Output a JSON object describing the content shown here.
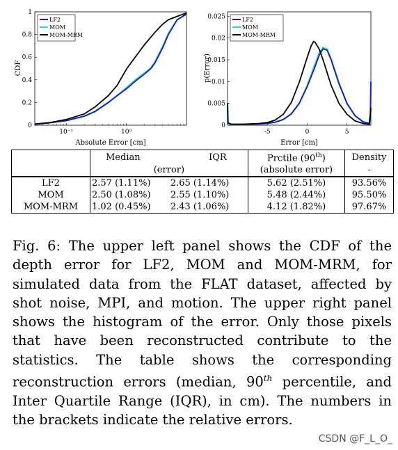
{
  "chart_data": [
    {
      "type": "line",
      "title": "",
      "xlabel": "Absolute Error [cm]",
      "ylabel": "CDF",
      "xscale": "log",
      "xlim": [
        0.03,
        10
      ],
      "ylim": [
        0,
        1
      ],
      "xticks": [
        "10⁻¹",
        "10⁰"
      ],
      "yticks": [
        "0",
        "0.2",
        "0.4",
        "0.6",
        "0.8",
        "1"
      ],
      "legend": "top-left",
      "series": [
        {
          "name": "LF2",
          "color": "#1c1cb4",
          "x": [
            0.03,
            0.05,
            0.1,
            0.2,
            0.3,
            0.5,
            0.7,
            1,
            1.5,
            2,
            2.57,
            3,
            4,
            5,
            7,
            10
          ],
          "y": [
            0.01,
            0.02,
            0.04,
            0.08,
            0.12,
            0.2,
            0.26,
            0.32,
            0.4,
            0.45,
            0.5,
            0.55,
            0.68,
            0.8,
            0.93,
            0.98
          ]
        },
        {
          "name": "MOM",
          "color": "#35d0e8",
          "x": [
            0.03,
            0.05,
            0.1,
            0.2,
            0.3,
            0.5,
            0.7,
            1,
            1.5,
            2,
            2.5,
            3,
            4,
            5,
            7,
            10
          ],
          "y": [
            0.01,
            0.02,
            0.04,
            0.08,
            0.12,
            0.2,
            0.26,
            0.33,
            0.41,
            0.46,
            0.5,
            0.56,
            0.69,
            0.81,
            0.93,
            0.98
          ]
        },
        {
          "name": "MOM-MRM",
          "color": "#000000",
          "x": [
            0.03,
            0.05,
            0.1,
            0.2,
            0.3,
            0.5,
            0.7,
            1.02,
            1.5,
            2,
            3,
            4,
            5,
            7,
            10
          ],
          "y": [
            0.01,
            0.02,
            0.05,
            0.1,
            0.16,
            0.26,
            0.35,
            0.5,
            0.62,
            0.71,
            0.82,
            0.89,
            0.93,
            0.96,
            0.99
          ]
        }
      ]
    },
    {
      "type": "line",
      "title": "",
      "xlabel": "Error [cm]",
      "ylabel": "p(Error)",
      "xlim": [
        -10,
        8
      ],
      "ylim": [
        0,
        0.026
      ],
      "xticks": [
        "-5",
        "0",
        "5"
      ],
      "yticks": [
        "0",
        "0.005",
        "0.01",
        "0.015",
        "0.02",
        "0.025"
      ],
      "legend": "top-left",
      "series": [
        {
          "name": "LF2",
          "color": "#1c1cb4",
          "x": [
            -10,
            -9.95,
            -9.5,
            -8,
            -6,
            -5,
            -4,
            -3,
            -2,
            -1,
            0,
            1,
            1.5,
            2,
            2.5,
            3,
            4,
            5,
            6,
            7,
            7.8,
            7.95,
            8
          ],
          "y": [
            0.005,
            0.0005,
            0.0002,
            0.0002,
            0.0003,
            0.0004,
            0.0007,
            0.0013,
            0.0026,
            0.005,
            0.0088,
            0.0135,
            0.016,
            0.0175,
            0.0172,
            0.015,
            0.0095,
            0.005,
            0.0022,
            0.0008,
            0.0004,
            0.003,
            0.01
          ]
        },
        {
          "name": "MOM",
          "color": "#35d0e8",
          "x": [
            -10,
            -9.95,
            -9.5,
            -8,
            -6,
            -5,
            -4,
            -3,
            -2,
            -1,
            0,
            1,
            1.5,
            2,
            2.5,
            3,
            4,
            5,
            6,
            7,
            7.8,
            7.95,
            8
          ],
          "y": [
            0.005,
            0.0005,
            0.0002,
            0.0002,
            0.0003,
            0.0004,
            0.0007,
            0.0013,
            0.0026,
            0.005,
            0.009,
            0.014,
            0.0165,
            0.0178,
            0.0174,
            0.0152,
            0.0096,
            0.005,
            0.0022,
            0.0008,
            0.0004,
            0.003,
            0.0105
          ]
        },
        {
          "name": "MOM-MRM",
          "color": "#000000",
          "x": [
            -10,
            -9.95,
            -9.5,
            -8,
            -6,
            -5,
            -4,
            -3,
            -2,
            -1,
            0,
            0.5,
            0.8,
            1,
            1.5,
            2,
            3,
            4,
            5,
            6,
            7,
            7.8,
            7.95,
            8
          ],
          "y": [
            0.005,
            0.0005,
            0.0002,
            0.0002,
            0.0004,
            0.0006,
            0.0012,
            0.0025,
            0.0052,
            0.0098,
            0.0155,
            0.0182,
            0.0192,
            0.019,
            0.0175,
            0.015,
            0.0092,
            0.005,
            0.0025,
            0.001,
            0.0004,
            0.0002,
            0.002,
            0.004
          ]
        }
      ]
    },
    {
      "type": "table",
      "header_row1": [
        "",
        "Median",
        "IQR",
        "Prctile (90",
        "th",
        ")",
        "Density"
      ],
      "header_row2": [
        "",
        "(error)",
        "(absolute error)",
        "-"
      ],
      "rows": [
        {
          "method": "LF2",
          "median": "2.57 (1.11%)",
          "iqr": "2.65 (1.14%)",
          "prctile": "5.62 (2.51%)",
          "density": "93.56%"
        },
        {
          "method": "MOM",
          "median": "2.50 (1.08%)",
          "iqr": "2.55 (1.10%)",
          "prctile": "5.48 (2.44%)",
          "density": "95.50%"
        },
        {
          "method": "MOM-MRM",
          "median": "1.02 (0.45%)",
          "iqr": "2.43 (1.06%)",
          "prctile": "4.12 (1.82%)",
          "density": "97.67%"
        }
      ]
    }
  ],
  "caption": {
    "part1": "Fig. 6: The upper left panel shows the CDF of the depth error for LF2, MOM and MOM-MRM, for simulated data from the FLAT dataset, affected by shot noise, MPI, and motion. The upper right panel shows the histogram of the error. Only those pixels that have been reconstructed contribute to the statistics. The table shows the corresponding reconstruction errors (median, 90",
    "sup": "th",
    "part2": " percentile, and Inter Quartile Range (IQR), in cm). The numbers in the brackets indicate the relative errors."
  },
  "watermark": "CSDN @F_L_O_"
}
